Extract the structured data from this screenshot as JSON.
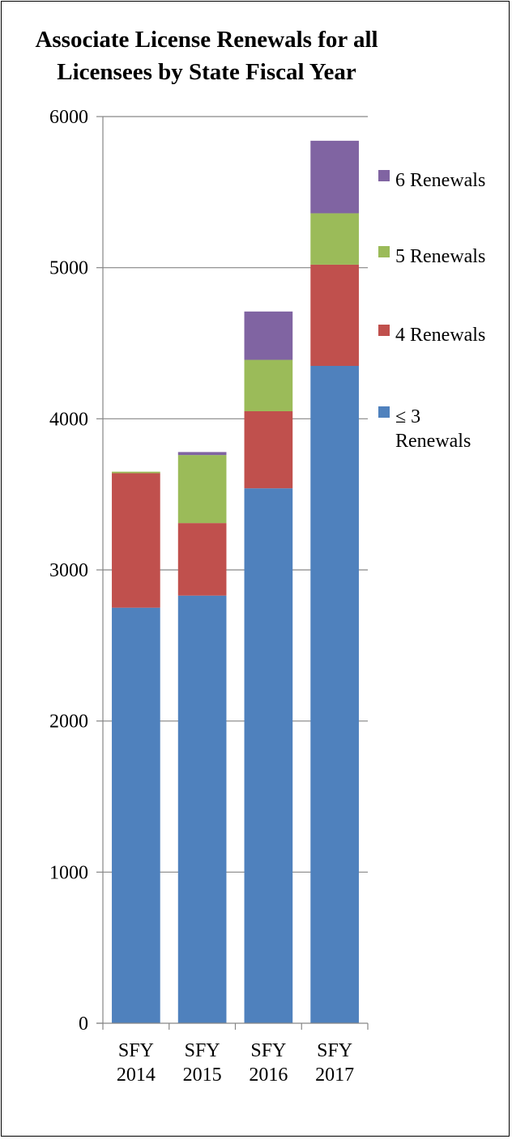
{
  "chart_data": {
    "type": "bar",
    "stacked": true,
    "title_lines": [
      "Associate License Renewals for all",
      "Licensees by State Fiscal Year"
    ],
    "categories": [
      [
        "SFY",
        "2014"
      ],
      [
        "SFY",
        "2015"
      ],
      [
        "SFY",
        "2016"
      ],
      [
        "SFY",
        "2017"
      ]
    ],
    "ylim": [
      0,
      6000
    ],
    "yticks": [
      "0",
      "1000",
      "2000",
      "3000",
      "4000",
      "5000",
      "6000"
    ],
    "grid": true,
    "legend_position": "right",
    "series": [
      {
        "name": "≤ 3 Renewals",
        "legend_lines": [
          "≤ 3",
          "Renewals"
        ],
        "color": "#4f81bd",
        "values": [
          2750,
          2830,
          3540,
          4350
        ]
      },
      {
        "name": "4 Renewals",
        "legend_lines": [
          "4 Renewals"
        ],
        "color": "#c0504d",
        "values": [
          890,
          480,
          510,
          670
        ]
      },
      {
        "name": "5 Renewals",
        "legend_lines": [
          "5 Renewals"
        ],
        "color": "#9bbb59",
        "values": [
          10,
          450,
          340,
          340
        ]
      },
      {
        "name": "6 Renewals",
        "legend_lines": [
          "6 Renewals"
        ],
        "color": "#8064a2",
        "values": [
          0,
          20,
          320,
          480
        ]
      }
    ]
  }
}
